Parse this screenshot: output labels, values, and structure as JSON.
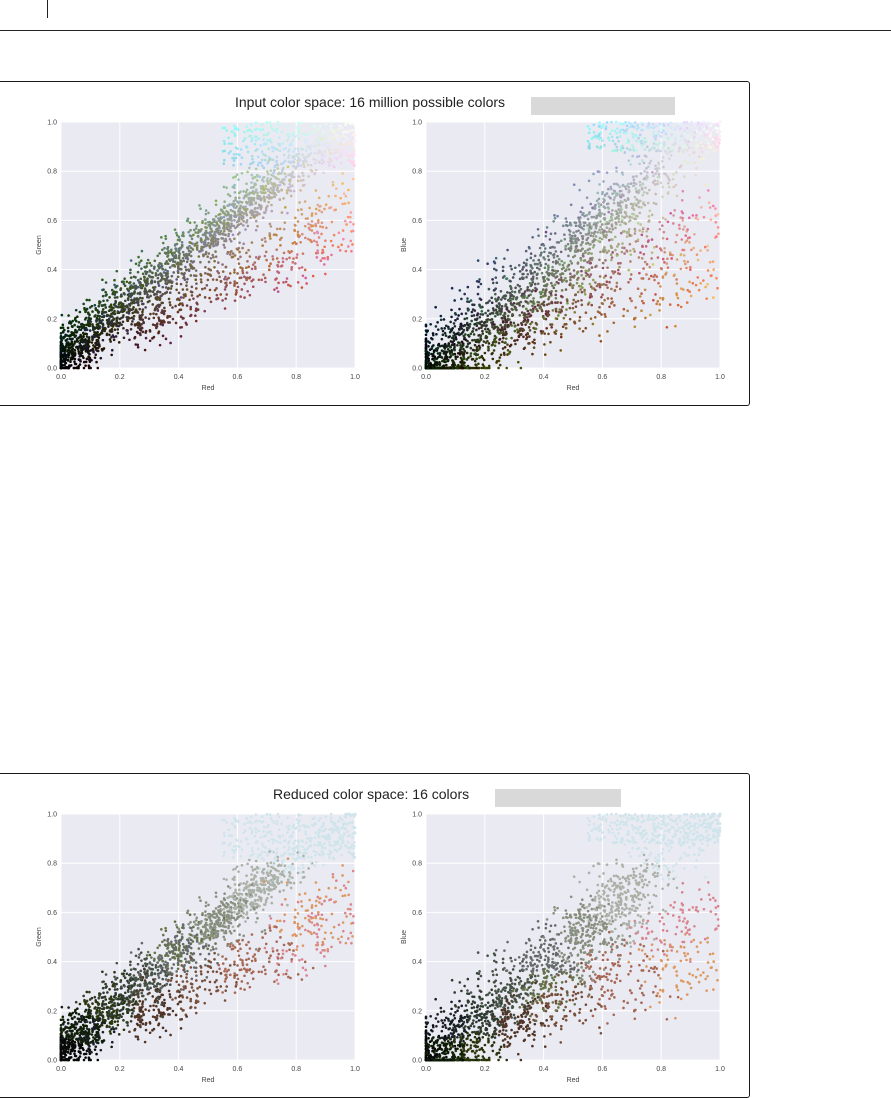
{
  "page": {
    "rule_color": "#222222"
  },
  "colors": {
    "plot_background": "#eaeaf2",
    "grid": "#ffffff",
    "sky_blue": "#a7c6e9",
    "orange": "#e07a4f",
    "redaction": "#d9d9d9"
  },
  "figures": [
    {
      "title": "Input color space: 16 million possible colors",
      "redacted_label": ""
    },
    {
      "title": "Reduced color space: 16 colors",
      "redacted_label": ""
    }
  ],
  "chart_data": [
    {
      "type": "scatter",
      "figure": 0,
      "title": "",
      "xlabel": "Red",
      "ylabel": "Green",
      "xlim": [
        0.0,
        1.0
      ],
      "ylim": [
        0.0,
        1.0
      ],
      "xticks": [
        "0.0",
        "0.2",
        "0.4",
        "0.6",
        "0.8",
        "1.0"
      ],
      "yticks": [
        "0.0",
        "0.2",
        "0.4",
        "0.6",
        "0.8",
        "1.0"
      ],
      "grid": true,
      "point_color": "rgb of each pixel",
      "y_relation": "close to diagonal, narrow spread; orange/red cloud below diagonal for red 0.4-1.0",
      "quantized": false
    },
    {
      "type": "scatter",
      "figure": 0,
      "title": "",
      "xlabel": "Red",
      "ylabel": "Blue",
      "xlim": [
        0.0,
        1.0
      ],
      "ylim": [
        0.0,
        1.0
      ],
      "xticks": [
        "0.0",
        "0.2",
        "0.4",
        "0.6",
        "0.8",
        "1.0"
      ],
      "yticks": [
        "0.0",
        "0.2",
        "0.4",
        "0.6",
        "0.8",
        "1.0"
      ],
      "grid": true,
      "point_color": "rgb of each pixel",
      "y_relation": "wider spread around diagonal; light blue cluster near (0.6-1.0, 0.85-1.0)",
      "quantized": false
    },
    {
      "type": "scatter",
      "figure": 1,
      "title": "",
      "xlabel": "Red",
      "ylabel": "Green",
      "xlim": [
        0.0,
        1.0
      ],
      "ylim": [
        0.0,
        1.0
      ],
      "xticks": [
        "0.0",
        "0.2",
        "0.4",
        "0.6",
        "0.8",
        "1.0"
      ],
      "yticks": [
        "0.0",
        "0.2",
        "0.4",
        "0.6",
        "0.8",
        "1.0"
      ],
      "grid": true,
      "point_color": "one of 16 cluster colors",
      "y_relation": "close to diagonal, narrow spread",
      "quantized": true
    },
    {
      "type": "scatter",
      "figure": 1,
      "title": "",
      "xlabel": "Red",
      "ylabel": "Blue",
      "xlim": [
        0.0,
        1.0
      ],
      "ylim": [
        0.0,
        1.0
      ],
      "xticks": [
        "0.0",
        "0.2",
        "0.4",
        "0.6",
        "0.8",
        "1.0"
      ],
      "yticks": [
        "0.0",
        "0.2",
        "0.4",
        "0.6",
        "0.8",
        "1.0"
      ],
      "grid": true,
      "point_color": "one of 16 cluster colors",
      "y_relation": "wider spread around diagonal",
      "quantized": true
    }
  ]
}
